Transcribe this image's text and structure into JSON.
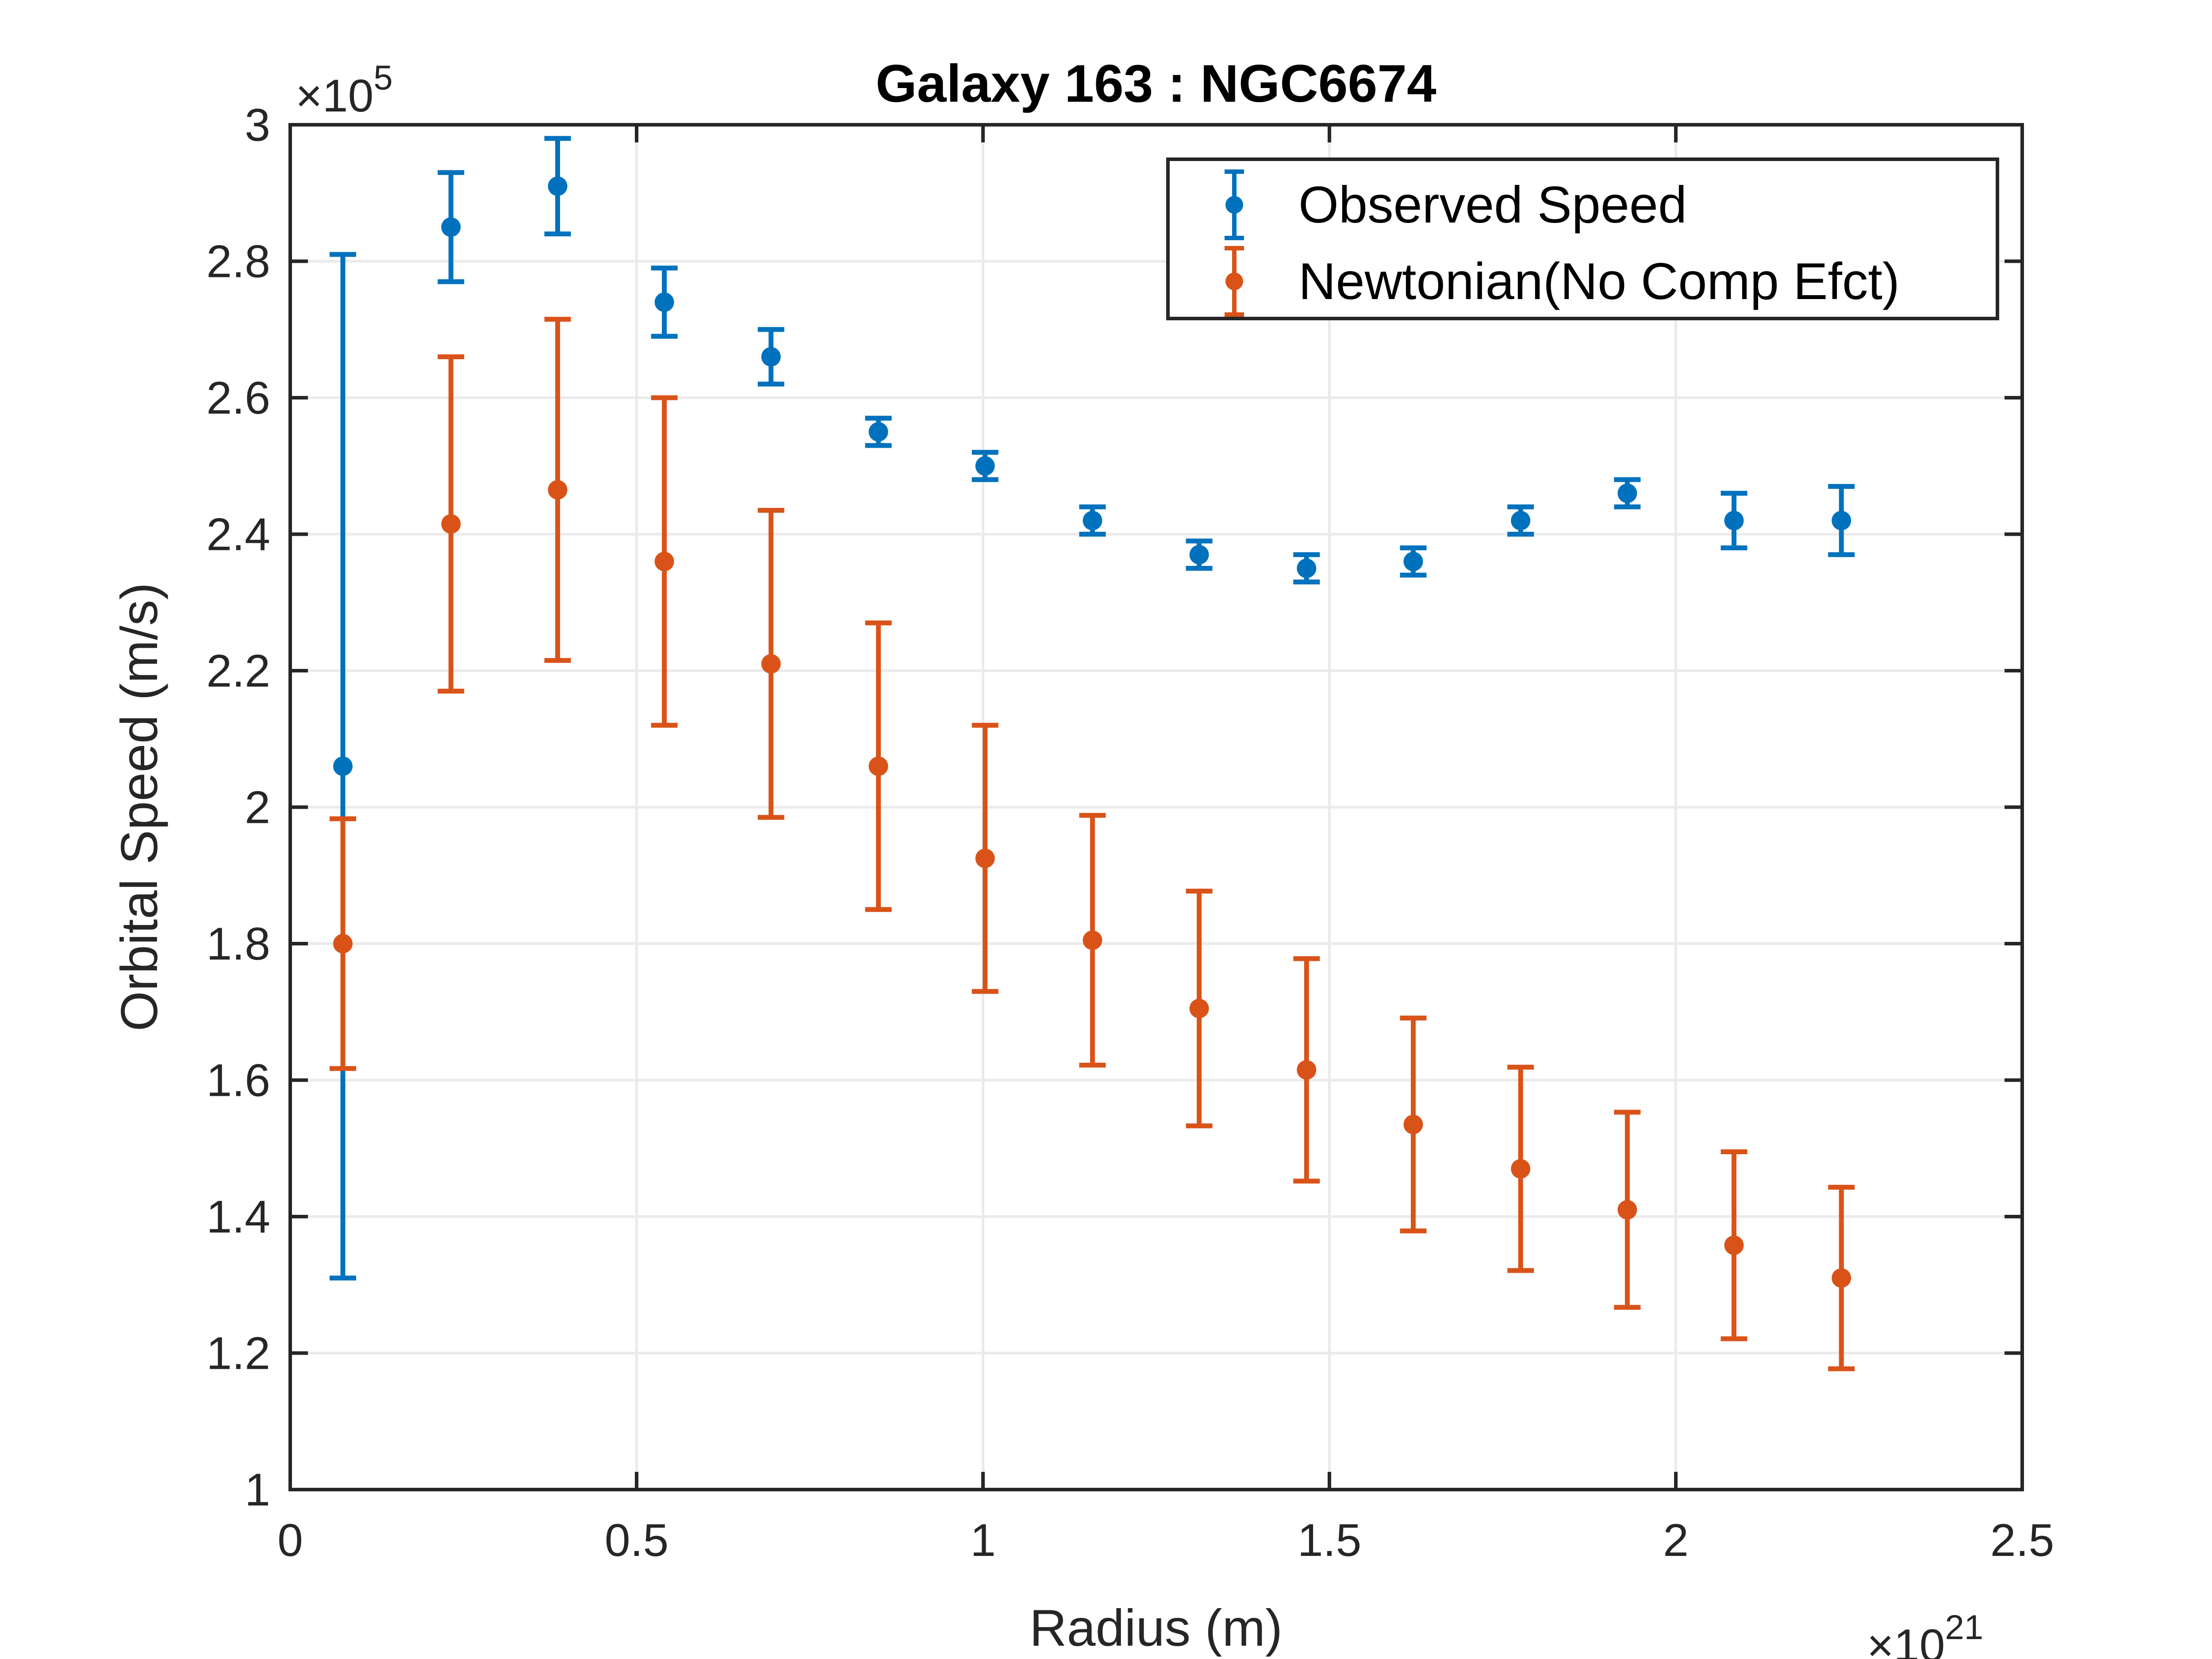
{
  "chart_data": {
    "type": "scatter",
    "title": "Galaxy 163 : NGC6674",
    "xlabel": "Radius (m)",
    "ylabel": "Orbital Speed (m/s)",
    "x_exponent_label": {
      "base": "×10",
      "power": "21"
    },
    "y_exponent_label": {
      "base": "×10",
      "power": "5"
    },
    "xlim": [
      0,
      2.5
    ],
    "ylim": [
      1,
      3
    ],
    "x_ticks": [
      0,
      0.5,
      1,
      1.5,
      2,
      2.5
    ],
    "x_tick_labels": [
      "0",
      "0.5",
      "1",
      "1.5",
      "2",
      "2.5"
    ],
    "y_ticks": [
      1,
      1.2,
      1.4,
      1.6,
      1.8,
      2,
      2.2,
      2.4,
      2.6,
      2.8,
      3
    ],
    "y_tick_labels": [
      "1",
      "1.2",
      "1.4",
      "1.6",
      "1.8",
      "2",
      "2.2",
      "2.4",
      "2.6",
      "2.8",
      "3"
    ],
    "grid": true,
    "legend_position": "top-right",
    "x": [
      0.076,
      0.232,
      0.386,
      0.54,
      0.694,
      0.849,
      1.003,
      1.158,
      1.312,
      1.467,
      1.621,
      1.776,
      1.93,
      2.084,
      2.239
    ],
    "series": [
      {
        "name": "Observed Speed",
        "color": "#0072BD",
        "y": [
          2.06,
          2.85,
          2.91,
          2.74,
          2.66,
          2.55,
          2.5,
          2.42,
          2.37,
          2.35,
          2.36,
          2.42,
          2.46,
          2.42,
          2.42
        ],
        "err": [
          0.75,
          0.08,
          0.07,
          0.05,
          0.04,
          0.02,
          0.02,
          0.02,
          0.02,
          0.02,
          0.02,
          0.02,
          0.02,
          0.04,
          0.05
        ]
      },
      {
        "name": "Newtonian(No Comp Efct)",
        "color": "#D95319",
        "y": [
          1.8,
          2.415,
          2.465,
          2.36,
          2.21,
          2.06,
          1.925,
          1.805,
          1.705,
          1.615,
          1.535,
          1.47,
          1.41,
          1.358,
          1.31
        ],
        "err": [
          0.183,
          0.245,
          0.25,
          0.24,
          0.225,
          0.21,
          0.195,
          0.183,
          0.172,
          0.163,
          0.156,
          0.149,
          0.143,
          0.137,
          0.133
        ]
      }
    ]
  }
}
